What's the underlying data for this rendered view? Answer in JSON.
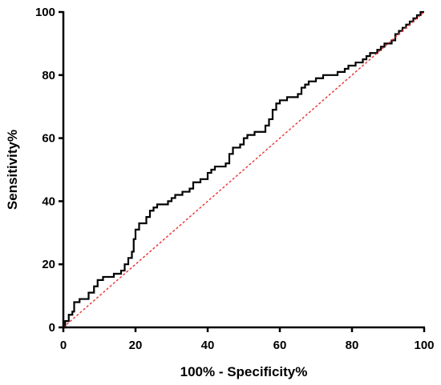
{
  "chart_data": {
    "type": "line",
    "title": "",
    "xlabel": "100% - Specificity%",
    "ylabel": "Sensitivity%",
    "xlim": [
      0,
      100
    ],
    "ylim": [
      0,
      100
    ],
    "xticks": [
      "0",
      "20",
      "40",
      "60",
      "80",
      "100"
    ],
    "yticks": [
      "0",
      "20",
      "40",
      "60",
      "80",
      "100"
    ],
    "grid": false,
    "legend": "none",
    "series": [
      {
        "style": "step",
        "color": "#000000",
        "points": [
          [
            0,
            0
          ],
          [
            0.5,
            0
          ],
          [
            0.5,
            2
          ],
          [
            1.5,
            2
          ],
          [
            1.5,
            4
          ],
          [
            2.5,
            4
          ],
          [
            2.5,
            5
          ],
          [
            3,
            5
          ],
          [
            3,
            8
          ],
          [
            4.5,
            8
          ],
          [
            4.5,
            9
          ],
          [
            7,
            9
          ],
          [
            7,
            11
          ],
          [
            8.5,
            11
          ],
          [
            8.5,
            13
          ],
          [
            9.5,
            13
          ],
          [
            9.5,
            15
          ],
          [
            11,
            15
          ],
          [
            11,
            16
          ],
          [
            14,
            16
          ],
          [
            14,
            17
          ],
          [
            16,
            17
          ],
          [
            16,
            18
          ],
          [
            17,
            18
          ],
          [
            17,
            20
          ],
          [
            18,
            20
          ],
          [
            18,
            22
          ],
          [
            19,
            22
          ],
          [
            19,
            24
          ],
          [
            19.5,
            24
          ],
          [
            19.5,
            28
          ],
          [
            20,
            28
          ],
          [
            20,
            31
          ],
          [
            21,
            31
          ],
          [
            21,
            33
          ],
          [
            23,
            33
          ],
          [
            23,
            35
          ],
          [
            24,
            35
          ],
          [
            24,
            37
          ],
          [
            25,
            37
          ],
          [
            25,
            38
          ],
          [
            26,
            38
          ],
          [
            26,
            39
          ],
          [
            29,
            39
          ],
          [
            29,
            40
          ],
          [
            30,
            40
          ],
          [
            30,
            41
          ],
          [
            31,
            41
          ],
          [
            31,
            42
          ],
          [
            33,
            42
          ],
          [
            33,
            43
          ],
          [
            35,
            43
          ],
          [
            35,
            44
          ],
          [
            36,
            44
          ],
          [
            36,
            46
          ],
          [
            38,
            46
          ],
          [
            38,
            47
          ],
          [
            40,
            47
          ],
          [
            40,
            49
          ],
          [
            41,
            49
          ],
          [
            41,
            50
          ],
          [
            42,
            50
          ],
          [
            42,
            51
          ],
          [
            45,
            51
          ],
          [
            45,
            52
          ],
          [
            46,
            52
          ],
          [
            46,
            55
          ],
          [
            47,
            55
          ],
          [
            47,
            57
          ],
          [
            49,
            57
          ],
          [
            49,
            58
          ],
          [
            50,
            58
          ],
          [
            50,
            60
          ],
          [
            51,
            60
          ],
          [
            51,
            61
          ],
          [
            53,
            61
          ],
          [
            53,
            62
          ],
          [
            56,
            62
          ],
          [
            56,
            64
          ],
          [
            57,
            64
          ],
          [
            57,
            66
          ],
          [
            58,
            66
          ],
          [
            58,
            69
          ],
          [
            59,
            69
          ],
          [
            59,
            71
          ],
          [
            60,
            71
          ],
          [
            60,
            72
          ],
          [
            62,
            72
          ],
          [
            62,
            73
          ],
          [
            65,
            73
          ],
          [
            65,
            74
          ],
          [
            66,
            74
          ],
          [
            66,
            76
          ],
          [
            67,
            76
          ],
          [
            67,
            77
          ],
          [
            68,
            77
          ],
          [
            68,
            78
          ],
          [
            70,
            78
          ],
          [
            70,
            79
          ],
          [
            72,
            79
          ],
          [
            72,
            80
          ],
          [
            76,
            80
          ],
          [
            76,
            81
          ],
          [
            78,
            81
          ],
          [
            78,
            82
          ],
          [
            79,
            82
          ],
          [
            79,
            83
          ],
          [
            81,
            83
          ],
          [
            81,
            84
          ],
          [
            83,
            84
          ],
          [
            83,
            85
          ],
          [
            84,
            85
          ],
          [
            84,
            86
          ],
          [
            85,
            86
          ],
          [
            85,
            87
          ],
          [
            87,
            87
          ],
          [
            87,
            88
          ],
          [
            88,
            88
          ],
          [
            88,
            89
          ],
          [
            89,
            89
          ],
          [
            89,
            90
          ],
          [
            91,
            90
          ],
          [
            91,
            91
          ],
          [
            92,
            91
          ],
          [
            92,
            93
          ],
          [
            93,
            93
          ],
          [
            93,
            94
          ],
          [
            94,
            94
          ],
          [
            94,
            95
          ],
          [
            95,
            95
          ],
          [
            95,
            96
          ],
          [
            96,
            96
          ],
          [
            96,
            97
          ],
          [
            97,
            97
          ],
          [
            97,
            98
          ],
          [
            98,
            98
          ],
          [
            98,
            99
          ],
          [
            99,
            99
          ],
          [
            99,
            100
          ],
          [
            100,
            100
          ]
        ]
      },
      {
        "style": "dotted",
        "color": "#e8312f",
        "points": [
          [
            0,
            0
          ],
          [
            100,
            100
          ]
        ]
      }
    ]
  }
}
